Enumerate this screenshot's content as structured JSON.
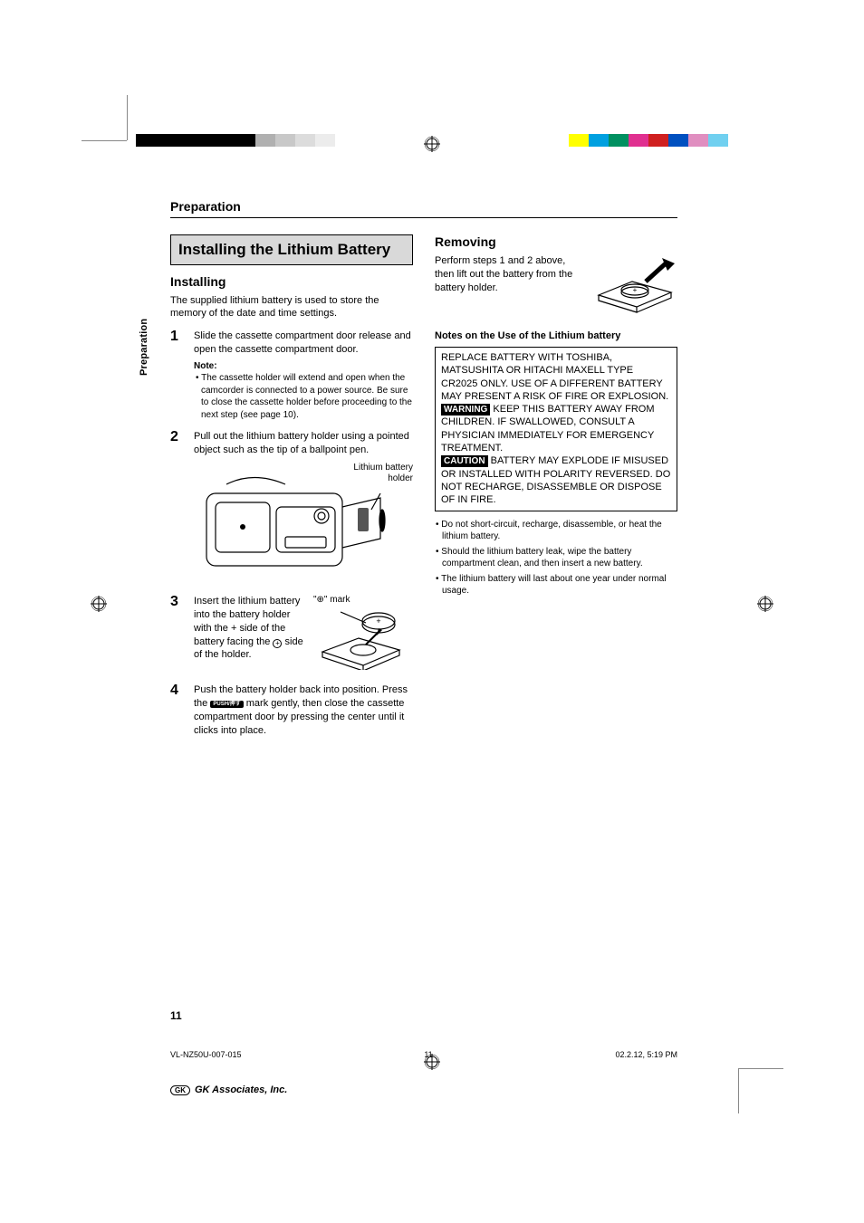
{
  "crop_color": "#888888",
  "colorbar_left": [
    "#000000",
    "#000000",
    "#000000",
    "#000000",
    "#000000",
    "#000000",
    "#b0b0b0",
    "#c8c8c8",
    "#dcdcdc",
    "#ececec",
    "#ffffff"
  ],
  "colorbar_right": [
    "#ffff00",
    "#00a0e0",
    "#009060",
    "#e03090",
    "#d02020",
    "#0050c0",
    "#e08ec0",
    "#70d0f0"
  ],
  "section": "Preparation",
  "side_tab": "Preparation",
  "main_heading": "Installing the Lithium Battery",
  "installing": {
    "heading": "Installing",
    "intro": "The supplied lithium battery is used to store the memory of the date and time settings.",
    "step1": "Slide the cassette compartment door release and open the cassette compartment door.",
    "note_head": "Note:",
    "note_body": "• The cassette holder will extend and open when the camcorder is connected to a power source. Be sure to close the cassette holder before proceeding to the next step (see page 10).",
    "step2": "Pull out the lithium battery holder using a pointed object such as the tip of a ballpoint pen.",
    "fig2_caption": "Lithium battery\nholder",
    "step3_a": "Insert the lithium battery into the battery holder with the ",
    "step3_b": " side of the battery facing the ",
    "step3_c": " side of the holder.",
    "step3_mark_label": "\"⊕\" mark",
    "step4_a": "Push the battery holder back into position. Press the ",
    "step4_badge": "PUSH/押す",
    "step4_b": " mark gently, then close the cassette compartment door by pressing the center until it clicks into place."
  },
  "removing": {
    "heading": "Removing",
    "body": "Perform steps 1 and 2 above, then lift out the battery from the battery holder."
  },
  "notes": {
    "title": "Notes on the Use of the Lithium battery",
    "box_p1": "REPLACE BATTERY WITH TOSHIBA, MATSUSHITA OR HITACHI MAXELL TYPE CR2025 ONLY. USE OF A DIFFERENT BATTERY MAY PRESENT A RISK OF FIRE OR EXPLOSION.",
    "warn_badge": "WARNING",
    "box_p2": " KEEP THIS BATTERY AWAY FROM CHILDREN. IF SWALLOWED, CONSULT A PHYSICIAN IMMEDIATELY FOR EMERGENCY TREATMENT.",
    "caution_badge": "CAUTION",
    "box_p3": " BATTERY MAY EXPLODE IF MISUSED OR INSTALLED WITH POLARITY REVERSED. DO NOT RECHARGE, DISASSEMBLE OR DISPOSE OF IN FIRE.",
    "bullets": [
      "Do not short-circuit, recharge, disassemble, or heat the lithium battery.",
      "Should the lithium battery leak, wipe the battery compartment clean, and then insert a new battery.",
      "The lithium battery will last about one year under normal usage."
    ]
  },
  "page_number": "11",
  "footer": {
    "doc_id": "VL-NZ50U-007-015",
    "page": "11",
    "timestamp": "02.2.12, 5:19 PM",
    "company_logo": "GK",
    "company": "GK Associates, Inc."
  }
}
